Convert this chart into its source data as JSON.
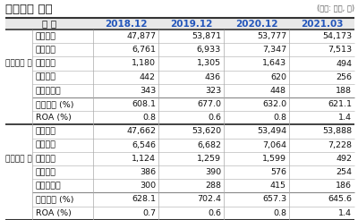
{
  "title": "재무제표 변동",
  "unit_note": "(단위: 억원, 배)",
  "columns": [
    "구 분",
    "2018.12",
    "2019.12",
    "2020.12",
    "2021.03"
  ],
  "section1_label": "정정공시 전",
  "section2_label": "정정공시 후",
  "section1_rows": [
    [
      "자산총계",
      "47,877",
      "53,871",
      "53,777",
      "54,173"
    ],
    [
      "자본총계",
      "6,761",
      "6,933",
      "7,347",
      "7,513"
    ],
    [
      "영업이익",
      "1,180",
      "1,305",
      "1,643",
      "494"
    ],
    [
      "세전이익",
      "442",
      "436",
      "620",
      "256"
    ],
    [
      "당기순이익",
      "343",
      "323",
      "448",
      "188"
    ],
    [
      "부채비율 (%)",
      "608.1",
      "677.0",
      "632.0",
      "621.1"
    ],
    [
      "ROA (%)",
      "0.8",
      "0.6",
      "0.8",
      "1.4"
    ]
  ],
  "section2_rows": [
    [
      "자산총계",
      "47,662",
      "53,620",
      "53,494",
      "53,888"
    ],
    [
      "자본총계",
      "6,546",
      "6,682",
      "7,064",
      "7,228"
    ],
    [
      "영업이익",
      "1,124",
      "1,259",
      "1,599",
      "492"
    ],
    [
      "세전이익",
      "386",
      "390",
      "576",
      "254"
    ],
    [
      "당기순이익",
      "300",
      "288",
      "415",
      "186"
    ],
    [
      "부채비율 (%)",
      "628.1",
      "702.4",
      "657.3",
      "645.6"
    ],
    [
      "ROA (%)",
      "0.7",
      "0.6",
      "0.8",
      "1.4"
    ]
  ],
  "bg_color": "#ffffff",
  "text_color": "#222222",
  "col_year_color": "#2255bb",
  "header_bg": "#e8e8e8",
  "sep_thick": "#333333",
  "sep_thin": "#aaaaaa",
  "sep_mid": "#888888"
}
